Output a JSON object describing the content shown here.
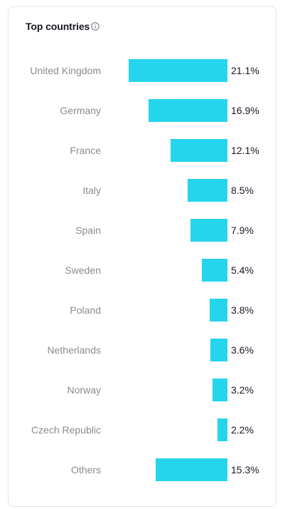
{
  "panel": {
    "title": "Top countries",
    "info_icon": "info-circle-icon"
  },
  "colors": {
    "bar": "#25d4ed",
    "label": "#8a8b91",
    "value": "#161823"
  },
  "countries": [
    {
      "name": "United Kingdom",
      "value": 21.1,
      "label": "21.1%"
    },
    {
      "name": "Germany",
      "value": 16.9,
      "label": "16.9%"
    },
    {
      "name": "France",
      "value": 12.1,
      "label": "12.1%"
    },
    {
      "name": "Italy",
      "value": 8.5,
      "label": "8.5%"
    },
    {
      "name": "Spain",
      "value": 7.9,
      "label": "7.9%"
    },
    {
      "name": "Sweden",
      "value": 5.4,
      "label": "5.4%"
    },
    {
      "name": "Poland",
      "value": 3.8,
      "label": "3.8%"
    },
    {
      "name": "Netherlands",
      "value": 3.6,
      "label": "3.6%"
    },
    {
      "name": "Norway",
      "value": 3.2,
      "label": "3.2%"
    },
    {
      "name": "Czech Republic",
      "value": 2.2,
      "label": "2.2%"
    },
    {
      "name": "Others",
      "value": 15.3,
      "label": "15.3%"
    }
  ]
}
